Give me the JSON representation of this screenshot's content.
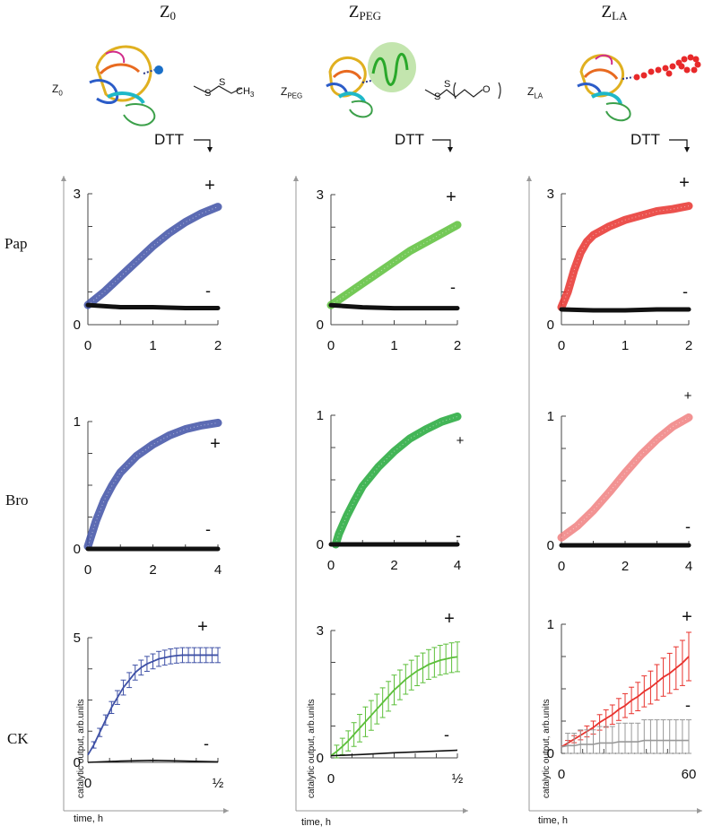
{
  "columns": [
    {
      "id": "z0",
      "main": "Z",
      "sub": "0",
      "color": "#3f51a6",
      "side_main": "Z",
      "side_sub": "0"
    },
    {
      "id": "zpeg",
      "main": "Z",
      "sub": "PEG",
      "color": "#5cbf3a",
      "side_main": "Z",
      "side_sub": "PEG"
    },
    {
      "id": "zla",
      "main": "Z",
      "sub": "LA",
      "color": "#e8332e",
      "side_main": "Z",
      "side_sub": "LA"
    }
  ],
  "rows": [
    "Pap",
    "Bro",
    "CK"
  ],
  "dtt_label": "DTT",
  "chem": {
    "z0": {
      "s1": "S",
      "s2": "S",
      "ch": "CH",
      "ch_sub": "3"
    },
    "zpeg": {
      "s1": "S",
      "s2": "S",
      "o": "O"
    }
  },
  "axis_titles": {
    "y": "catalytic output, arb.units",
    "x": "time, h"
  },
  "chart_data": [
    {
      "id": "pap-z0",
      "type": "line",
      "row": "Pap",
      "column": "Z0",
      "xlim": [
        0,
        2
      ],
      "ylim": [
        0,
        3
      ],
      "xticks": [
        "0",
        "1",
        "2"
      ],
      "yticks": [
        "0",
        "3"
      ],
      "series": [
        {
          "name": "+",
          "x": [
            0,
            0.25,
            0.5,
            0.75,
            1,
            1.25,
            1.5,
            1.75,
            2
          ],
          "y": [
            0.45,
            0.75,
            1.1,
            1.45,
            1.8,
            2.1,
            2.35,
            2.55,
            2.7
          ]
        },
        {
          "name": "-",
          "x": [
            0,
            0.5,
            1,
            1.5,
            2
          ],
          "y": [
            0.45,
            0.4,
            0.4,
            0.38,
            0.38
          ]
        }
      ],
      "labels": {
        "plus": "+",
        "minus": "-"
      }
    },
    {
      "id": "pap-zpeg",
      "type": "line",
      "row": "Pap",
      "column": "ZPEG",
      "xlim": [
        0,
        2
      ],
      "ylim": [
        0,
        3
      ],
      "xticks": [
        "0",
        "1",
        "2"
      ],
      "yticks": [
        "0",
        "3"
      ],
      "series": [
        {
          "name": "+",
          "x": [
            0,
            0.25,
            0.5,
            0.75,
            1,
            1.25,
            1.5,
            1.75,
            2
          ],
          "y": [
            0.45,
            0.7,
            0.95,
            1.2,
            1.45,
            1.7,
            1.9,
            2.1,
            2.3
          ]
        },
        {
          "name": "-",
          "x": [
            0,
            0.5,
            1,
            1.5,
            2
          ],
          "y": [
            0.45,
            0.4,
            0.38,
            0.38,
            0.38
          ]
        }
      ],
      "labels": {
        "plus": "+",
        "minus": "-"
      }
    },
    {
      "id": "pap-zla",
      "type": "line",
      "row": "Pap",
      "column": "ZLA",
      "xlim": [
        0,
        2
      ],
      "ylim": [
        0,
        3
      ],
      "xticks": [
        "0",
        "1",
        "2"
      ],
      "yticks": [
        "0",
        "3"
      ],
      "series": [
        {
          "name": "+",
          "x": [
            0,
            0.1,
            0.2,
            0.3,
            0.4,
            0.5,
            0.75,
            1,
            1.25,
            1.5,
            1.75,
            2
          ],
          "y": [
            0.4,
            0.75,
            1.25,
            1.65,
            1.9,
            2.05,
            2.25,
            2.4,
            2.5,
            2.6,
            2.65,
            2.72
          ]
        },
        {
          "name": "-",
          "x": [
            0,
            0.5,
            1,
            1.5,
            2
          ],
          "y": [
            0.35,
            0.33,
            0.33,
            0.35,
            0.35
          ]
        }
      ],
      "labels": {
        "plus": "+",
        "minus": "-"
      }
    },
    {
      "id": "bro-z0",
      "type": "line",
      "row": "Bro",
      "column": "Z0",
      "xlim": [
        0,
        4
      ],
      "ylim": [
        0,
        1
      ],
      "xticks": [
        "0",
        "2",
        "4"
      ],
      "yticks": [
        "0",
        "1"
      ],
      "series": [
        {
          "name": "+",
          "x": [
            0,
            0.25,
            0.5,
            0.75,
            1,
            1.5,
            2,
            2.5,
            3,
            3.5,
            4
          ],
          "y": [
            0.02,
            0.22,
            0.38,
            0.5,
            0.6,
            0.73,
            0.82,
            0.89,
            0.94,
            0.97,
            0.99
          ]
        },
        {
          "name": "-",
          "x": [
            0,
            1,
            2,
            3,
            4
          ],
          "y": [
            0,
            0,
            0,
            0,
            0
          ]
        }
      ],
      "labels": {
        "plus": "+",
        "minus": "-"
      }
    },
    {
      "id": "bro-zpeg",
      "type": "line",
      "row": "Bro",
      "column": "ZPEG",
      "xlim": [
        0,
        4
      ],
      "ylim": [
        0,
        1
      ],
      "xticks": [
        "0",
        "2",
        "4"
      ],
      "yticks": [
        "0",
        "1"
      ],
      "series": [
        {
          "name": "+",
          "x": [
            0.15,
            0.25,
            0.5,
            0.75,
            1,
            1.5,
            2,
            2.5,
            3,
            3.5,
            4
          ],
          "y": [
            0,
            0.08,
            0.22,
            0.34,
            0.45,
            0.6,
            0.72,
            0.82,
            0.89,
            0.95,
            0.99
          ]
        },
        {
          "name": "-",
          "x": [
            0,
            1,
            2,
            3,
            4
          ],
          "y": [
            0,
            0,
            0,
            0,
            0
          ]
        }
      ],
      "labels": {
        "plus": "+",
        "minus": "-"
      }
    },
    {
      "id": "bro-zla",
      "type": "line",
      "row": "Bro",
      "column": "ZLA",
      "xlim": [
        0,
        4
      ],
      "ylim": [
        0,
        1
      ],
      "xticks": [
        "0",
        "2",
        "4"
      ],
      "yticks": [
        "0",
        "1"
      ],
      "series": [
        {
          "name": "+",
          "x": [
            0,
            0.5,
            1,
            1.5,
            2,
            2.5,
            3,
            3.5,
            4
          ],
          "y": [
            0.06,
            0.15,
            0.27,
            0.41,
            0.56,
            0.7,
            0.82,
            0.92,
            0.99
          ]
        },
        {
          "name": "-",
          "x": [
            0,
            1,
            2,
            3,
            4
          ],
          "y": [
            0,
            0,
            0,
            0,
            0
          ]
        }
      ],
      "labels": {
        "plus": "+",
        "minus": "-"
      }
    },
    {
      "id": "ck-z0",
      "type": "line",
      "row": "CK",
      "column": "Z0",
      "xlim": [
        0,
        0.5
      ],
      "ylim": [
        0,
        5
      ],
      "xticks": [
        "0",
        "½"
      ],
      "yticks": [
        "0",
        "5"
      ],
      "series": [
        {
          "name": "+",
          "x": [
            0,
            0.0227,
            0.0455,
            0.0682,
            0.0909,
            0.1136,
            0.1364,
            0.1591,
            0.1818,
            0.2045,
            0.2273,
            0.25,
            0.2727,
            0.2955,
            0.3182,
            0.3409,
            0.3636,
            0.3864,
            0.4091,
            0.4318,
            0.4545,
            0.4773,
            0.5
          ],
          "y": [
            0.3,
            0.7,
            1.2,
            1.7,
            2.2,
            2.6,
            3.0,
            3.3,
            3.6,
            3.8,
            3.95,
            4.05,
            4.15,
            4.2,
            4.25,
            4.28,
            4.3,
            4.3,
            4.3,
            4.3,
            4.3,
            4.3,
            4.3
          ],
          "err": 0.3
        },
        {
          "name": "-",
          "x": [
            0,
            0.125,
            0.25,
            0.375,
            0.5
          ],
          "y": [
            0,
            0.05,
            0.08,
            0.05,
            0.02
          ]
        }
      ],
      "labels": {
        "plus": "+",
        "minus": "-"
      }
    },
    {
      "id": "ck-zpeg",
      "type": "line",
      "row": "CK",
      "column": "ZPEG",
      "xlim": [
        0,
        0.5
      ],
      "ylim": [
        0,
        3
      ],
      "xticks": [
        "0",
        "½"
      ],
      "yticks": [
        "0",
        "3"
      ],
      "series": [
        {
          "name": "+",
          "x": [
            0,
            0.0227,
            0.0455,
            0.0682,
            0.0909,
            0.1136,
            0.1364,
            0.1591,
            0.1818,
            0.2045,
            0.2273,
            0.25,
            0.2727,
            0.2955,
            0.3182,
            0.3409,
            0.3636,
            0.3864,
            0.4091,
            0.4318,
            0.4545,
            0.4773,
            0.5
          ],
          "y": [
            0.05,
            0.15,
            0.27,
            0.4,
            0.55,
            0.7,
            0.85,
            1.0,
            1.15,
            1.3,
            1.45,
            1.6,
            1.72,
            1.85,
            1.95,
            2.05,
            2.12,
            2.2,
            2.25,
            2.3,
            2.33,
            2.36,
            2.38
          ],
          "err": 0.35
        },
        {
          "name": "-",
          "x": [
            0,
            0.125,
            0.25,
            0.375,
            0.5
          ],
          "y": [
            0.05,
            0.08,
            0.12,
            0.15,
            0.18
          ]
        }
      ],
      "labels": {
        "plus": "+",
        "minus": "-"
      }
    },
    {
      "id": "ck-zla",
      "type": "line",
      "row": "CK",
      "column": "ZLA",
      "xlim": [
        0,
        60
      ],
      "ylim": [
        0,
        1
      ],
      "xticks": [
        "0",
        "60"
      ],
      "yticks": [
        "0",
        "1"
      ],
      "series": [
        {
          "name": "+",
          "x": [
            0,
            3,
            6,
            9,
            12,
            15,
            18,
            21,
            24,
            27,
            30,
            33,
            36,
            39,
            42,
            45,
            48,
            51,
            54,
            57,
            60
          ],
          "y": [
            0.05,
            0.08,
            0.11,
            0.14,
            0.17,
            0.2,
            0.24,
            0.27,
            0.3,
            0.34,
            0.37,
            0.41,
            0.44,
            0.48,
            0.51,
            0.55,
            0.59,
            0.62,
            0.66,
            0.7,
            0.75
          ],
          "err_frac": 0.25
        },
        {
          "name": "-",
          "x": [
            0,
            3,
            6,
            9,
            12,
            15,
            18,
            21,
            24,
            27,
            30,
            33,
            36,
            39,
            42,
            45,
            48,
            51,
            54,
            57,
            60
          ],
          "y": [
            0.05,
            0.06,
            0.06,
            0.07,
            0.07,
            0.07,
            0.08,
            0.08,
            0.08,
            0.09,
            0.09,
            0.09,
            0.09,
            0.1,
            0.1,
            0.1,
            0.1,
            0.1,
            0.1,
            0.1,
            0.1
          ],
          "err_frac": 1.6,
          "color": "#999999"
        }
      ],
      "labels": {
        "plus": "+",
        "minus": "-"
      }
    }
  ]
}
